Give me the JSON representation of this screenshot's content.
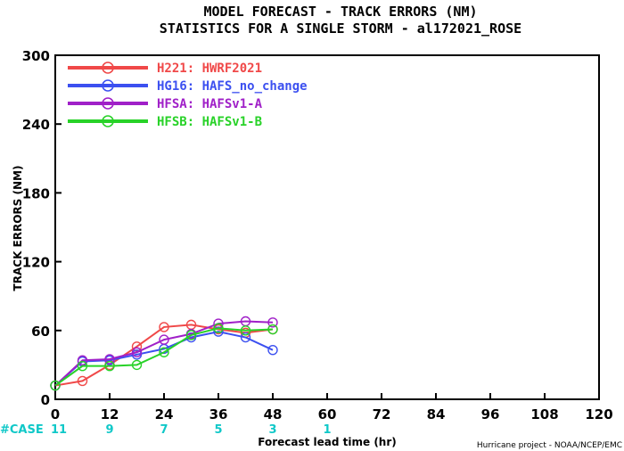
{
  "chart_data": {
    "type": "line",
    "title": "MODEL FORECAST - TRACK ERRORS (NM)",
    "subtitle": "STATISTICS FOR A SINGLE STORM - al172021_ROSE",
    "xlabel": "Forecast lead time (hr)",
    "ylabel": "TRACK ERRORS (NM)",
    "xlim": [
      0,
      120
    ],
    "ylim": [
      0,
      300
    ],
    "x_ticks": [
      "0",
      "12",
      "24",
      "36",
      "48",
      "60",
      "72",
      "84",
      "96",
      "108",
      "120"
    ],
    "y_ticks": [
      "0",
      "60",
      "120",
      "180",
      "240",
      "300"
    ],
    "grid": false,
    "legend_position": "top-left",
    "series": [
      {
        "name": "H221: HWRF2021",
        "color": "#f04848",
        "x": [
          0,
          6,
          12,
          18,
          24,
          30,
          36,
          42,
          48
        ],
        "y": [
          12,
          16,
          30,
          46,
          63,
          65,
          61,
          58,
          61
        ]
      },
      {
        "name": "HG16: HAFS_no_change",
        "color": "#3c50f0",
        "x": [
          0,
          6,
          12,
          18,
          24,
          30,
          36,
          42,
          48
        ],
        "y": [
          12,
          33,
          34,
          39,
          44,
          54,
          59,
          54,
          43
        ]
      },
      {
        "name": "HFSA: HAFSv1-A",
        "color": "#a020c8",
        "x": [
          0,
          6,
          12,
          18,
          24,
          30,
          36,
          42,
          48
        ],
        "y": [
          12,
          34,
          35,
          41,
          52,
          57,
          66,
          68,
          67
        ]
      },
      {
        "name": "HFSB: HAFSv1-B",
        "color": "#28d228",
        "x": [
          0,
          6,
          12,
          18,
          24,
          30,
          36,
          42,
          48
        ],
        "y": [
          12,
          29,
          29,
          30,
          41,
          56,
          62,
          60,
          61
        ]
      }
    ],
    "case_label": "#CASE",
    "case_counts": [
      {
        "x": 0,
        "n": "11"
      },
      {
        "x": 12,
        "n": "9"
      },
      {
        "x": 24,
        "n": "7"
      },
      {
        "x": 36,
        "n": "5"
      },
      {
        "x": 48,
        "n": "3"
      },
      {
        "x": 60,
        "n": "1"
      }
    ]
  },
  "footer": "Hurricane project - NOAA/NCEP/EMC",
  "colors": {
    "case_text": "#10c8c8",
    "axis": "#000000"
  }
}
